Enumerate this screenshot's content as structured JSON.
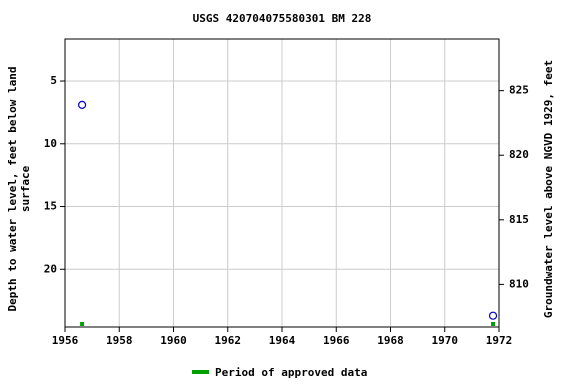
{
  "chart_data": {
    "type": "scatter",
    "title": "USGS 420704075580301 BM 228",
    "ylabel": [
      "Depth to water level, feet below land",
      "surface"
    ],
    "y2label": "Groundwater level above NGVD 1929, feet",
    "xlim": [
      1956,
      1972
    ],
    "xticks": [
      1956,
      1958,
      1960,
      1962,
      1964,
      1966,
      1968,
      1970,
      1972
    ],
    "ylim": [
      24.6,
      1.65
    ],
    "yticks": [
      5,
      10,
      15,
      20
    ],
    "y2lim": [
      806.7,
      829.0
    ],
    "y2ticks": [
      810,
      815,
      820,
      825
    ],
    "grid": true,
    "series": [
      {
        "color": "#0000cc",
        "x": [
          1956.63,
          1971.78
        ],
        "values": [
          6.9,
          23.7
        ]
      },
      {
        "name": "Period of approved data",
        "color": "#00a000",
        "x": [
          1956.63,
          1971.78
        ]
      }
    ],
    "legend": "bottom"
  }
}
